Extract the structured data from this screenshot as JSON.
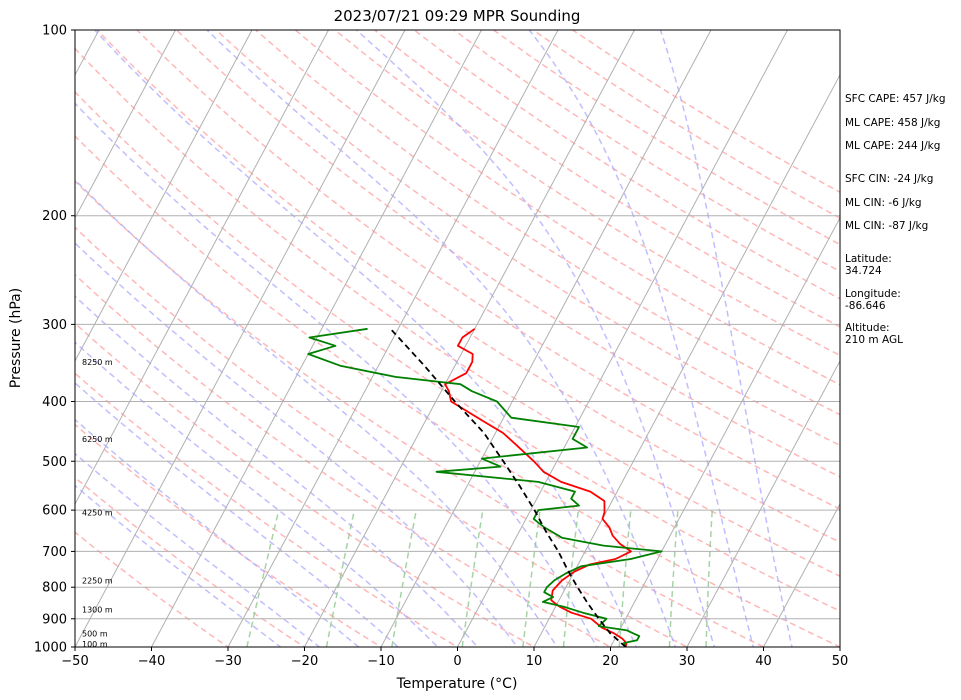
{
  "chart_data": {
    "type": "line",
    "title": "2023/07/21 09:29 MPR Sounding",
    "xlabel": "Temperature (°C)",
    "ylabel": "Pressure (hPa)",
    "xlim": [
      -50,
      50
    ],
    "ylim": [
      1000,
      100
    ],
    "y_scale": "log",
    "skew": "skew-T",
    "grid": true,
    "x_ticks": [
      -50,
      -40,
      -30,
      -20,
      -10,
      0,
      10,
      20,
      30,
      40,
      50
    ],
    "x_tick_labels": [
      "−50",
      "−40",
      "−30",
      "−20",
      "−10",
      "0",
      "10",
      "20",
      "30",
      "40",
      "50"
    ],
    "y_ticks": [
      1000,
      900,
      800,
      700,
      600,
      500,
      400,
      300,
      200,
      100
    ],
    "y_tick_labels": [
      "1000",
      "900",
      "800",
      "700",
      "600",
      "500",
      "400",
      "300",
      "200",
      "100"
    ],
    "height_labels": [
      {
        "p": 988,
        "text": "100 m"
      },
      {
        "p": 950,
        "text": "500 m"
      },
      {
        "p": 870,
        "text": "1300 m"
      },
      {
        "p": 780,
        "text": "2250 m"
      },
      {
        "p": 605,
        "text": "4250 m"
      },
      {
        "p": 460,
        "text": "6250 m"
      },
      {
        "p": 345,
        "text": "8250 m"
      }
    ],
    "series": [
      {
        "color": "#ff0000",
        "points": [
          {
            "p": 1000,
            "t": 22.0
          },
          {
            "p": 985,
            "t": 21.8
          },
          {
            "p": 970,
            "t": 21.0
          },
          {
            "p": 950,
            "t": 19.5
          },
          {
            "p": 930,
            "t": 17.5
          },
          {
            "p": 900,
            "t": 15.5
          },
          {
            "p": 880,
            "t": 12.5
          },
          {
            "p": 860,
            "t": 10.5
          },
          {
            "p": 840,
            "t": 9.0
          },
          {
            "p": 810,
            "t": 8.5
          },
          {
            "p": 780,
            "t": 9.0
          },
          {
            "p": 755,
            "t": 10.0
          },
          {
            "p": 735,
            "t": 11.5
          },
          {
            "p": 720,
            "t": 14.5
          },
          {
            "p": 700,
            "t": 16.0
          },
          {
            "p": 680,
            "t": 14.0
          },
          {
            "p": 660,
            "t": 12.5
          },
          {
            "p": 640,
            "t": 11.5
          },
          {
            "p": 620,
            "t": 10.0
          },
          {
            "p": 605,
            "t": 9.8
          },
          {
            "p": 580,
            "t": 9.0
          },
          {
            "p": 560,
            "t": 6.5
          },
          {
            "p": 540,
            "t": 2.0
          },
          {
            "p": 520,
            "t": -1.0
          },
          {
            "p": 500,
            "t": -3.0
          },
          {
            "p": 470,
            "t": -6.5
          },
          {
            "p": 450,
            "t": -9.0
          },
          {
            "p": 430,
            "t": -12.5
          },
          {
            "p": 400,
            "t": -18.0
          },
          {
            "p": 385,
            "t": -19.0
          },
          {
            "p": 375,
            "t": -20.0
          },
          {
            "p": 360,
            "t": -18.0
          },
          {
            "p": 345,
            "t": -18.0
          },
          {
            "p": 335,
            "t": -18.5
          },
          {
            "p": 325,
            "t": -21.0
          },
          {
            "p": 315,
            "t": -21.0
          },
          {
            "p": 305,
            "t": -20.0
          }
        ]
      },
      {
        "color": "#008000",
        "points": [
          {
            "p": 1000,
            "t": 22.0
          },
          {
            "p": 985,
            "t": 21.5
          },
          {
            "p": 975,
            "t": 23.0
          },
          {
            "p": 960,
            "t": 23.0
          },
          {
            "p": 940,
            "t": 21.0
          },
          {
            "p": 925,
            "t": 17.0
          },
          {
            "p": 900,
            "t": 17.5
          },
          {
            "p": 880,
            "t": 14.0
          },
          {
            "p": 860,
            "t": 11.0
          },
          {
            "p": 845,
            "t": 8.0
          },
          {
            "p": 830,
            "t": 9.0
          },
          {
            "p": 815,
            "t": 7.5
          },
          {
            "p": 800,
            "t": 7.5
          },
          {
            "p": 780,
            "t": 8.0
          },
          {
            "p": 760,
            "t": 9.0
          },
          {
            "p": 740,
            "t": 10.5
          },
          {
            "p": 720,
            "t": 16.5
          },
          {
            "p": 700,
            "t": 20.0
          },
          {
            "p": 685,
            "t": 12.0
          },
          {
            "p": 665,
            "t": 6.0
          },
          {
            "p": 640,
            "t": 3.0
          },
          {
            "p": 620,
            "t": 1.0
          },
          {
            "p": 600,
            "t": 1.0
          },
          {
            "p": 590,
            "t": 6.0
          },
          {
            "p": 575,
            "t": 4.5
          },
          {
            "p": 560,
            "t": 4.5
          },
          {
            "p": 540,
            "t": -1.0
          },
          {
            "p": 520,
            "t": -15.0
          },
          {
            "p": 510,
            "t": -7.0
          },
          {
            "p": 495,
            "t": -10.0
          },
          {
            "p": 475,
            "t": 3.0
          },
          {
            "p": 460,
            "t": 0.5
          },
          {
            "p": 440,
            "t": 0.5
          },
          {
            "p": 425,
            "t": -9.0
          },
          {
            "p": 400,
            "t": -12.0
          },
          {
            "p": 385,
            "t": -16.0
          },
          {
            "p": 375,
            "t": -18.0
          },
          {
            "p": 365,
            "t": -27.0
          },
          {
            "p": 350,
            "t": -35.0
          },
          {
            "p": 335,
            "t": -40.0
          },
          {
            "p": 325,
            "t": -37.0
          },
          {
            "p": 315,
            "t": -41.0
          },
          {
            "p": 305,
            "t": -34.0
          }
        ]
      },
      {
        "color": "#000000",
        "dashed": true,
        "points": [
          {
            "p": 1000,
            "t": 22.0
          },
          {
            "p": 950,
            "t": 19.0
          },
          {
            "p": 900,
            "t": 16.5
          },
          {
            "p": 850,
            "t": 14.0
          },
          {
            "p": 800,
            "t": 11.5
          },
          {
            "p": 750,
            "t": 9.0
          },
          {
            "p": 700,
            "t": 6.5
          },
          {
            "p": 650,
            "t": 3.5
          },
          {
            "p": 600,
            "t": 0.5
          },
          {
            "p": 550,
            "t": -3.0
          },
          {
            "p": 500,
            "t": -7.0
          },
          {
            "p": 450,
            "t": -11.5
          },
          {
            "p": 400,
            "t": -17.5
          },
          {
            "p": 350,
            "t": -24.0
          },
          {
            "p": 305,
            "t": -31.0
          }
        ]
      }
    ],
    "background_lines": {
      "isotherms_color": "#b0b0b0",
      "dry_adiabats_color": "#ff9f9f",
      "moist_adiabats_color": "#a9a9ff",
      "mixing_ratio_color": "#90c890"
    }
  },
  "side_info": [
    {
      "id": "sfc-cape",
      "text": "SFC CAPE: 457 J/kg"
    },
    {
      "id": "ml-cape-1",
      "text": "ML CAPE: 458 J/kg"
    },
    {
      "id": "ml-cape-2",
      "text": "ML CAPE: 244 J/kg"
    },
    {
      "id": "sfc-cin",
      "text": "SFC CIN: -24 J/kg"
    },
    {
      "id": "ml-cin-1",
      "text": "ML CIN: -6 J/kg"
    },
    {
      "id": "ml-cin-2",
      "text": "ML CIN: -87 J/kg"
    },
    {
      "id": "latitude",
      "text": "Latitude:\n34.724"
    },
    {
      "id": "longitude",
      "text": "Longitude:\n-86.646"
    },
    {
      "id": "altitude",
      "text": "Altitude:\n210 m AGL"
    }
  ]
}
